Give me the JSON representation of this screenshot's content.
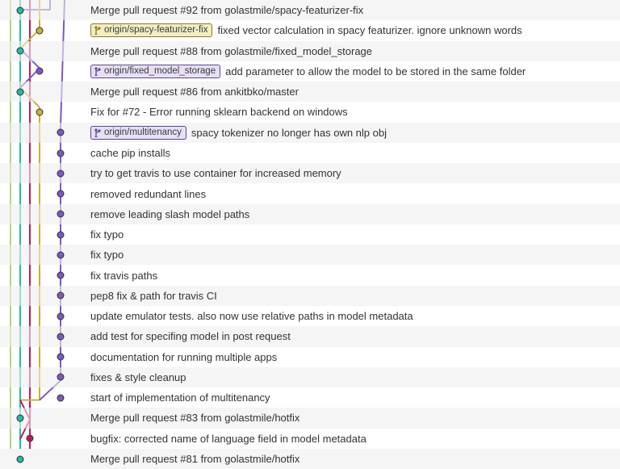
{
  "rowHeight": 25.27,
  "graphWidth": 110,
  "lanes": [
    13,
    25,
    37,
    49,
    62,
    75,
    80
  ],
  "colors": {
    "teal": "#1fbba6",
    "purple": "#7e57c2",
    "magenta": "#c2185b",
    "olive": "#c9b037",
    "lime": "#aed581"
  },
  "branchTagStyles": {
    "olive": {
      "bg": "#f3edc4",
      "border": "#8a7a1f",
      "text": "#3b3b3b"
    },
    "purple": {
      "bg": "#e7dff5",
      "border": "#5e478f",
      "text": "#3b3b3b"
    }
  },
  "commits": [
    {
      "dotLane": 2,
      "dotColor": "teal",
      "msg": "Merge pull request #92 from golastmile/spacy-featurizer-fix"
    },
    {
      "dotLane": 4,
      "dotColor": "olive",
      "branch": "origin/spacy-featurizer-fix",
      "branchStyle": "olive",
      "msg": "fixed vector calculation in spacy featurizer. ignore unknown words"
    },
    {
      "dotLane": 2,
      "dotColor": "teal",
      "msg": "Merge pull request #88 from golastmile/fixed_model_storage"
    },
    {
      "dotLane": 4,
      "dotColor": "purple",
      "branch": "origin/fixed_model_storage",
      "branchStyle": "purple",
      "msg": "add parameter to allow the model to be stored in the same folder"
    },
    {
      "dotLane": 2,
      "dotColor": "teal",
      "msg": "Merge pull request #86 from ankitbko/master"
    },
    {
      "dotLane": 4,
      "dotColor": "olive",
      "msg": "Fix for #72 - Error running sklearn backend on windows"
    },
    {
      "dotLane": 6,
      "dotColor": "purple",
      "branch": "origin/multitenancy",
      "branchStyle": "purple",
      "msg": "spacy tokenizer no longer has own nlp obj"
    },
    {
      "dotLane": 6,
      "dotColor": "purple",
      "msg": "cache pip installs"
    },
    {
      "dotLane": 6,
      "dotColor": "purple",
      "msg": "try to get travis to use container for increased memory"
    },
    {
      "dotLane": 6,
      "dotColor": "purple",
      "msg": "removed redundant lines"
    },
    {
      "dotLane": 6,
      "dotColor": "purple",
      "msg": "remove leading slash model paths"
    },
    {
      "dotLane": 6,
      "dotColor": "purple",
      "msg": "fix typo"
    },
    {
      "dotLane": 6,
      "dotColor": "purple",
      "msg": "fix typo"
    },
    {
      "dotLane": 6,
      "dotColor": "purple",
      "msg": "fix travis paths"
    },
    {
      "dotLane": 6,
      "dotColor": "purple",
      "msg": "pep8 fix & path  for travis CI"
    },
    {
      "dotLane": 6,
      "dotColor": "purple",
      "msg": "update emulator tests. also now use relative paths in model metadata"
    },
    {
      "dotLane": 6,
      "dotColor": "purple",
      "msg": "add test for specifing model in post request"
    },
    {
      "dotLane": 6,
      "dotColor": "purple",
      "msg": "documentation for running multiple apps"
    },
    {
      "dotLane": 6,
      "dotColor": "purple",
      "msg": "fixes & style cleanup"
    },
    {
      "dotLane": 6,
      "dotColor": "purple",
      "msg": "start of implementation of multitenancy"
    },
    {
      "dotLane": 2,
      "dotColor": "teal",
      "msg": "Merge pull request #83 from golastmile/hotfix"
    },
    {
      "dotLane": 3,
      "dotColor": "magenta",
      "msg": "bugfix: corrected name of language field in model metadata"
    },
    {
      "dotLane": 2,
      "dotColor": "teal",
      "msg": "Merge pull request #81 from golastmile/hotfix"
    }
  ],
  "graphLines": [
    {
      "color": "lime",
      "pts": [
        [
          1,
          -0.5
        ],
        [
          1,
          22.5
        ]
      ]
    },
    {
      "color": "teal",
      "pts": [
        [
          2,
          -0.5
        ],
        [
          2,
          22.5
        ]
      ]
    },
    {
      "color": "magenta",
      "pts": [
        [
          3,
          -0.5
        ],
        [
          3,
          22.5
        ]
      ]
    },
    {
      "color": "purple",
      "pts": [
        [
          5,
          -0.5
        ],
        [
          5,
          0
        ],
        [
          2,
          0
        ]
      ]
    },
    {
      "color": "olive",
      "pts": [
        [
          4,
          -0.5
        ],
        [
          4,
          1
        ],
        [
          2,
          2
        ]
      ]
    },
    {
      "color": "purple",
      "pts": [
        [
          2,
          2
        ],
        [
          4,
          3
        ],
        [
          2,
          4
        ]
      ]
    },
    {
      "color": "olive",
      "pts": [
        [
          2,
          4
        ],
        [
          4,
          5
        ]
      ]
    },
    {
      "color": "olive",
      "pts": [
        [
          4,
          5
        ],
        [
          4,
          20
        ],
        [
          2,
          20
        ]
      ]
    },
    {
      "color": "purple",
      "pts": [
        [
          7,
          -0.5
        ],
        [
          6,
          6
        ],
        [
          6,
          19
        ],
        [
          4,
          20
        ]
      ]
    },
    {
      "color": "magenta",
      "pts": [
        [
          2,
          20
        ],
        [
          3,
          21
        ],
        [
          2,
          22
        ]
      ]
    }
  ]
}
